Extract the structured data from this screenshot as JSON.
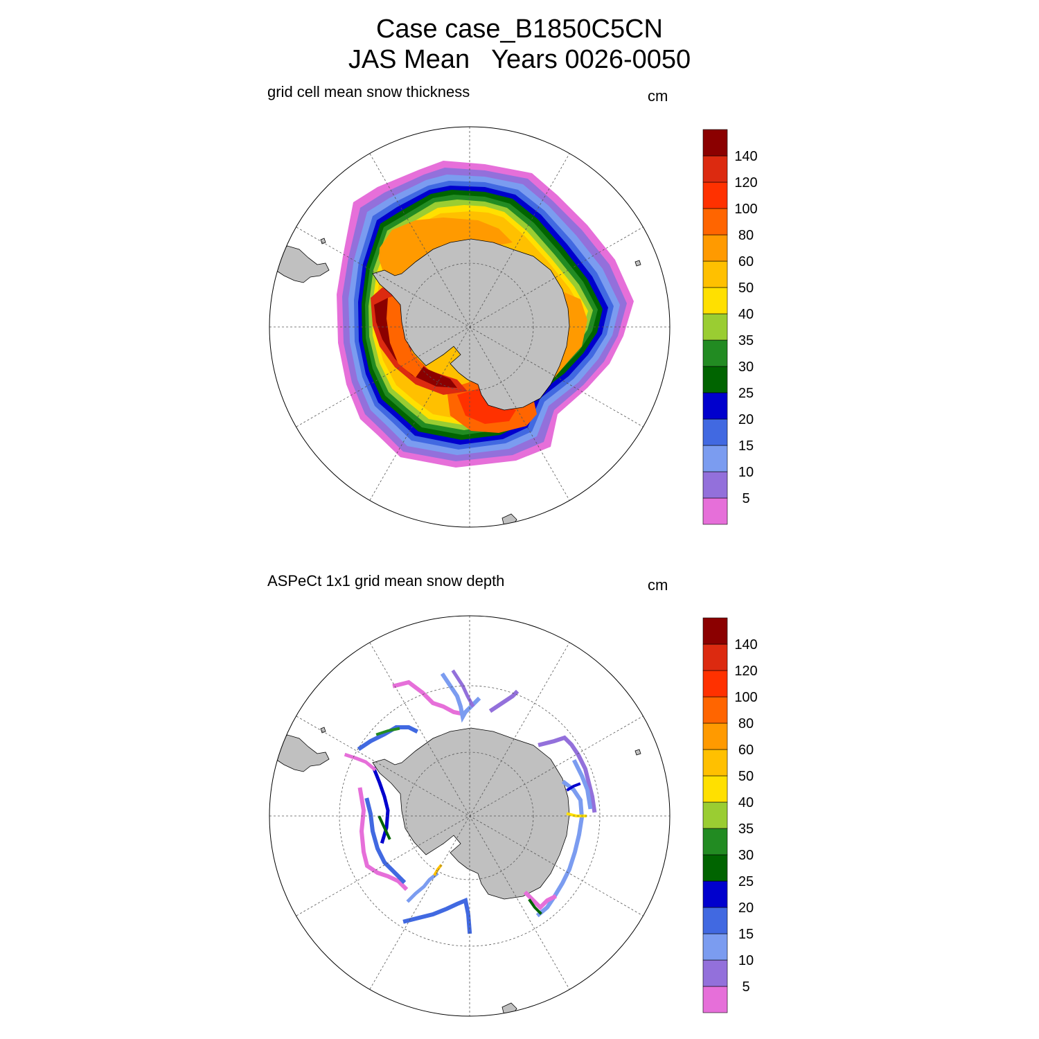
{
  "figure": {
    "title_line1": "Case case_B1850C5CN",
    "title_line2": "JAS Mean   Years 0026-0050"
  },
  "colorbar": {
    "colors": [
      "#e66fd9",
      "#9370db",
      "#7b9cf0",
      "#4169e1",
      "#0000cd",
      "#006400",
      "#228b22",
      "#9acd32",
      "#ffe000",
      "#ffc000",
      "#ff9a00",
      "#ff6500",
      "#ff3100",
      "#dc2a10",
      "#8b0000"
    ],
    "levels": [
      "5",
      "10",
      "15",
      "20",
      "25",
      "30",
      "35",
      "40",
      "50",
      "60",
      "80",
      "100",
      "120",
      "140"
    ]
  },
  "panels": [
    {
      "id": "top",
      "left_title": "grid cell mean snow thickness",
      "units": "cm",
      "field": "model snow thickness (continuous field around Antarctica)"
    },
    {
      "id": "bottom",
      "left_title": "ASPeCt 1x1 grid mean snow depth",
      "units": "cm",
      "field": "ASPeCt ship observations (ship tracks)"
    }
  ]
}
